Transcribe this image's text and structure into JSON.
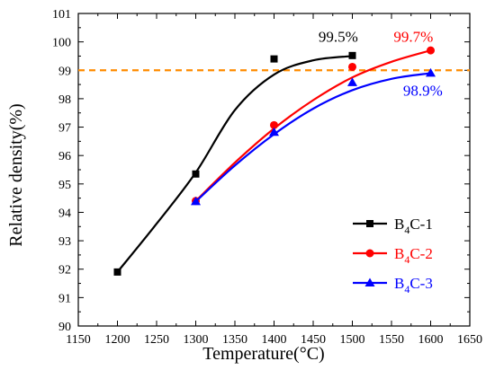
{
  "chart_data": {
    "type": "scatter",
    "title": "",
    "xlabel": "Temperature(°C)",
    "ylabel": "Relative density(%)",
    "xlim": [
      1150,
      1650
    ],
    "ylim": [
      90,
      101
    ],
    "x_ticks": [
      1150,
      1200,
      1250,
      1300,
      1350,
      1400,
      1450,
      1500,
      1550,
      1600,
      1650
    ],
    "y_ticks": [
      90,
      91,
      92,
      93,
      94,
      95,
      96,
      97,
      98,
      99,
      100,
      101
    ],
    "grid": false,
    "legend_position": "bottom-right",
    "reference_line": {
      "y": 99.0,
      "color": "#ff8c00",
      "style": "dashed"
    },
    "series": [
      {
        "name": "B4C-1",
        "legend_parts": [
          "B",
          "4",
          "C-1"
        ],
        "color": "#000000",
        "marker": "square",
        "points": [
          [
            1200,
            91.9
          ],
          [
            1300,
            95.35
          ],
          [
            1400,
            99.4
          ],
          [
            1500,
            99.52
          ]
        ],
        "fit": [
          [
            1200,
            91.9
          ],
          [
            1250,
            93.6
          ],
          [
            1300,
            95.4
          ],
          [
            1350,
            97.6
          ],
          [
            1400,
            98.85
          ],
          [
            1450,
            99.35
          ],
          [
            1500,
            99.5
          ]
        ]
      },
      {
        "name": "B4C-2",
        "legend_parts": [
          "B",
          "4",
          "C-2"
        ],
        "color": "#ff0000",
        "marker": "circle",
        "points": [
          [
            1300,
            94.4
          ],
          [
            1400,
            97.07
          ],
          [
            1500,
            99.12
          ],
          [
            1600,
            99.7
          ]
        ],
        "fit": [
          [
            1300,
            94.4
          ],
          [
            1350,
            95.75
          ],
          [
            1400,
            96.95
          ],
          [
            1450,
            97.95
          ],
          [
            1500,
            98.75
          ],
          [
            1550,
            99.3
          ],
          [
            1600,
            99.7
          ]
        ]
      },
      {
        "name": "B4C-3",
        "legend_parts": [
          "B",
          "4",
          "C-3"
        ],
        "color": "#0000ff",
        "marker": "triangle",
        "points": [
          [
            1300,
            94.38
          ],
          [
            1400,
            96.82
          ],
          [
            1500,
            98.57
          ],
          [
            1600,
            98.9
          ]
        ],
        "fit": [
          [
            1300,
            94.38
          ],
          [
            1350,
            95.65
          ],
          [
            1400,
            96.75
          ],
          [
            1450,
            97.65
          ],
          [
            1500,
            98.3
          ],
          [
            1550,
            98.7
          ],
          [
            1600,
            98.9
          ]
        ]
      }
    ],
    "annotations": [
      {
        "text": "99.5%",
        "x": 1482,
        "y": 100.0,
        "color": "#000000"
      },
      {
        "text": "99.7%",
        "x": 1578,
        "y": 100.0,
        "color": "#ff0000"
      },
      {
        "text": "98.9%",
        "x": 1590,
        "y": 98.1,
        "color": "#0000ff"
      }
    ]
  }
}
